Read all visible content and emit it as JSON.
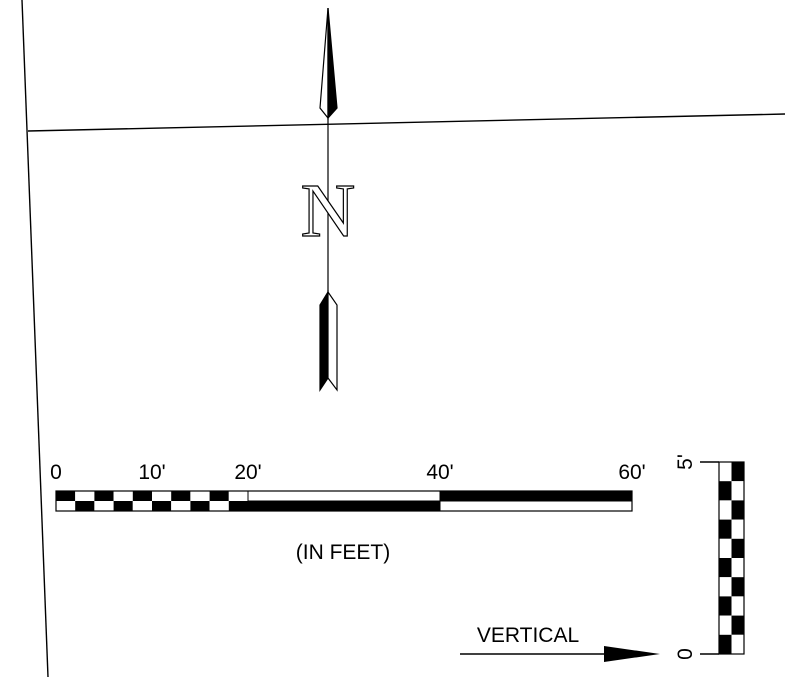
{
  "north_arrow": {
    "letter": "N"
  },
  "horizontal_scale": {
    "tick_labels": [
      "0",
      "10'",
      "20'",
      "40'",
      "60'"
    ],
    "unit_caption": "(IN FEET)"
  },
  "vertical_scale": {
    "caption": "VERTICAL",
    "top_label": "5'",
    "bottom_label": "0"
  },
  "colors": {
    "ink": "#000000",
    "paper": "#ffffff"
  }
}
